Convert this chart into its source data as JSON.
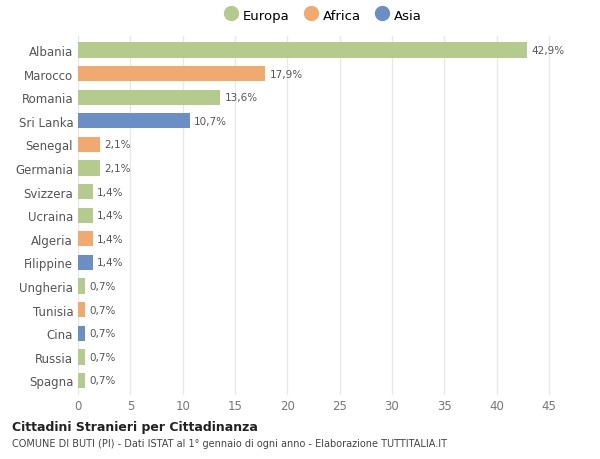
{
  "countries": [
    "Albania",
    "Marocco",
    "Romania",
    "Sri Lanka",
    "Senegal",
    "Germania",
    "Svizzera",
    "Ucraina",
    "Algeria",
    "Filippine",
    "Ungheria",
    "Tunisia",
    "Cina",
    "Russia",
    "Spagna"
  ],
  "values": [
    42.9,
    17.9,
    13.6,
    10.7,
    2.1,
    2.1,
    1.4,
    1.4,
    1.4,
    1.4,
    0.7,
    0.7,
    0.7,
    0.7,
    0.7
  ],
  "labels": [
    "42,9%",
    "17,9%",
    "13,6%",
    "10,7%",
    "2,1%",
    "2,1%",
    "1,4%",
    "1,4%",
    "1,4%",
    "1,4%",
    "0,7%",
    "0,7%",
    "0,7%",
    "0,7%",
    "0,7%"
  ],
  "continents": [
    "Europa",
    "Africa",
    "Europa",
    "Asia",
    "Africa",
    "Europa",
    "Europa",
    "Europa",
    "Africa",
    "Asia",
    "Europa",
    "Africa",
    "Asia",
    "Europa",
    "Europa"
  ],
  "colors": {
    "Europa": "#b5ca8d",
    "Africa": "#f0aa70",
    "Asia": "#6b8ec4"
  },
  "bg_color": "#ffffff",
  "plot_bg_color": "#ffffff",
  "grid_color": "#e8e8e8",
  "title": "Cittadini Stranieri per Cittadinanza",
  "subtitle": "COMUNE DI BUTI (PI) - Dati ISTAT al 1° gennaio di ogni anno - Elaborazione TUTTITALIA.IT",
  "xlabel_values": [
    0,
    5,
    10,
    15,
    20,
    25,
    30,
    35,
    40,
    45
  ],
  "xlim": [
    0,
    47
  ]
}
